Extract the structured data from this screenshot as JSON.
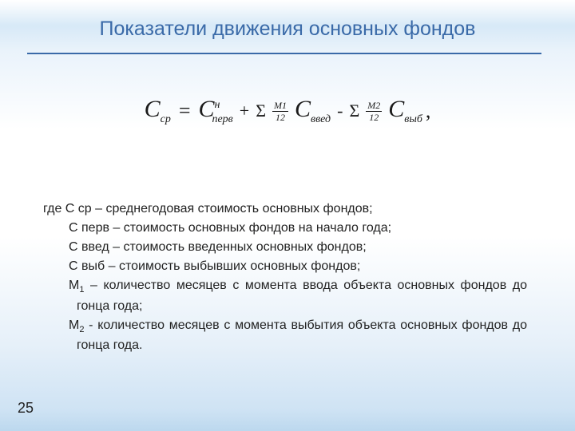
{
  "title": "Показатели движения основных фондов",
  "pageNumber": "25",
  "formula": {
    "C": "С",
    "sub_cp": "ср",
    "eq": "=",
    "sup_n": "н",
    "sub_perv": "перв",
    "plus": "+",
    "sigma": "Σ",
    "M1_num": "M1",
    "M2_num": "M2",
    "twelve": "12",
    "sub_vved": "введ",
    "minus": "-",
    "sub_vyb": "выб",
    "comma": ","
  },
  "legend": {
    "l1_pre": "где С ср – среднегодовая стоимость основных фондов;",
    "l2": "С перв – стоимость основных фондов на начало года;",
    "l3": "С введ – стоимость введенных основных фондов;",
    "l4": "С выб – стоимость выбывших основных фондов;",
    "l5a": "М",
    "l5_sub": "1",
    "l5b": " – количество месяцев с момента ввода объекта основных фондов до гонца года;",
    "l6a": "М",
    "l6_sub": "2",
    "l6b": " - количество месяцев с момента выбытия объекта основных фондов до гонца года."
  },
  "colors": {
    "title": "#3a6aa8",
    "rule": "#3a6aa8",
    "text": "#222222"
  }
}
